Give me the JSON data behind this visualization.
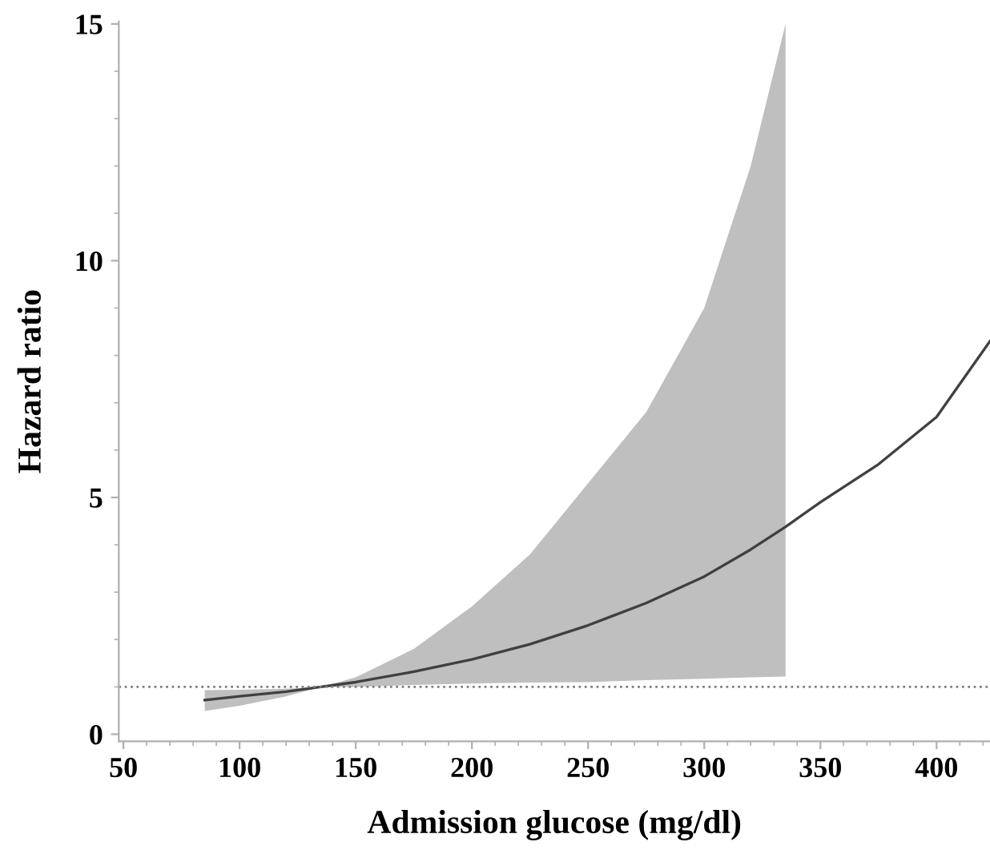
{
  "chart_data": {
    "type": "line",
    "xlabel": "Admission glucose (mg/dl)",
    "ylabel": "Hazard ratio",
    "xlim": [
      48,
      423
    ],
    "xticks": [
      50,
      100,
      150,
      200,
      250,
      300,
      350,
      400
    ],
    "ylim": [
      -0.15,
      15.05
    ],
    "yticks": [
      0,
      5,
      10,
      15
    ],
    "grid": false,
    "legend": false,
    "marker": "none",
    "line_style": "solid",
    "series": [
      {
        "color": "#404040",
        "x": [
          85,
          100,
          120,
          135,
          150,
          175,
          200,
          225,
          250,
          275,
          300,
          320,
          335,
          350,
          375,
          400,
          423
        ],
        "values": [
          0.72,
          0.8,
          0.9,
          1.0,
          1.1,
          1.32,
          1.58,
          1.9,
          2.3,
          2.77,
          3.33,
          3.9,
          4.38,
          4.9,
          5.7,
          6.7,
          8.3
        ],
        "lower": [
          0.49,
          0.6,
          0.8,
          1.0,
          1.0,
          1.04,
          1.07,
          1.09,
          1.1,
          1.14,
          1.17,
          1.2,
          1.22,
          null,
          null,
          null,
          null
        ],
        "upper": [
          0.93,
          0.94,
          0.96,
          1.0,
          1.2,
          1.8,
          2.7,
          3.8,
          5.3,
          6.8,
          9.0,
          12.0,
          15.0,
          null,
          null,
          null,
          null
        ]
      }
    ],
    "ref_lines": [
      {
        "axis": "y",
        "value": 1,
        "color": "#808080",
        "line_style": "dotted"
      }
    ]
  }
}
